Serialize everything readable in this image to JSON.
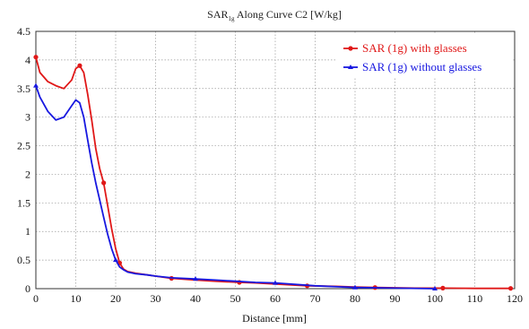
{
  "chart_data": {
    "type": "line",
    "title": {
      "main": "SAR",
      "sub": "1g",
      "rest": " Along Curve C2 [W/kg]"
    },
    "xlabel": "Distance [mm]",
    "ylabel": "",
    "xlim": [
      0,
      120
    ],
    "ylim": [
      0,
      4.5
    ],
    "xticks": [
      "0",
      "10",
      "20",
      "30",
      "40",
      "50",
      "60",
      "70",
      "80",
      "90",
      "100",
      "110",
      "120"
    ],
    "yticks": [
      "0",
      "0.5",
      "1",
      "1.5",
      "2",
      "2.5",
      "3",
      "3.5",
      "4",
      "4.5"
    ],
    "grid": true,
    "legend_position": "top-right",
    "series": [
      {
        "name": "SAR (1g) with glasses",
        "color": "#e01818",
        "x": [
          0,
          1,
          3,
          5,
          7,
          9,
          10,
          11,
          12,
          13,
          14,
          15,
          16,
          17,
          18,
          19,
          20,
          21,
          22,
          23,
          25,
          28,
          30,
          34,
          40,
          45,
          51,
          55,
          60,
          68,
          75,
          80,
          85,
          90,
          95,
          100,
          102,
          110,
          119
        ],
        "y": [
          4.05,
          3.78,
          3.62,
          3.55,
          3.5,
          3.65,
          3.85,
          3.9,
          3.78,
          3.4,
          2.95,
          2.45,
          2.1,
          1.85,
          1.45,
          1.05,
          0.7,
          0.45,
          0.34,
          0.3,
          0.27,
          0.24,
          0.22,
          0.18,
          0.15,
          0.13,
          0.11,
          0.1,
          0.08,
          0.05,
          0.04,
          0.03,
          0.02,
          0.015,
          0.01,
          0.01,
          0.01,
          0.005,
          0.005
        ],
        "markers_x": [
          0,
          11,
          17,
          21,
          34,
          51,
          68,
          85,
          102,
          119
        ],
        "markers_y": [
          4.05,
          3.9,
          1.85,
          0.45,
          0.18,
          0.11,
          0.05,
          0.02,
          0.01,
          0.005
        ]
      },
      {
        "name": "SAR (1g) without glasses",
        "color": "#1818e0",
        "x": [
          0,
          1,
          3,
          5,
          7,
          9,
          10,
          11,
          12,
          13,
          14,
          15,
          16,
          17,
          18,
          19,
          20,
          21,
          22,
          23,
          25,
          28,
          30,
          34,
          40,
          45,
          50,
          55,
          60,
          70,
          80,
          90,
          100
        ],
        "y": [
          3.55,
          3.35,
          3.1,
          2.95,
          3.0,
          3.2,
          3.3,
          3.25,
          3.0,
          2.6,
          2.2,
          1.85,
          1.55,
          1.25,
          0.95,
          0.7,
          0.5,
          0.38,
          0.33,
          0.29,
          0.26,
          0.24,
          0.22,
          0.19,
          0.17,
          0.15,
          0.13,
          0.11,
          0.1,
          0.05,
          0.02,
          0.01,
          0.0
        ],
        "markers_x": [
          0,
          20,
          40,
          60,
          80,
          100
        ],
        "markers_y": [
          3.55,
          0.5,
          0.17,
          0.1,
          0.02,
          0.0
        ]
      }
    ]
  }
}
